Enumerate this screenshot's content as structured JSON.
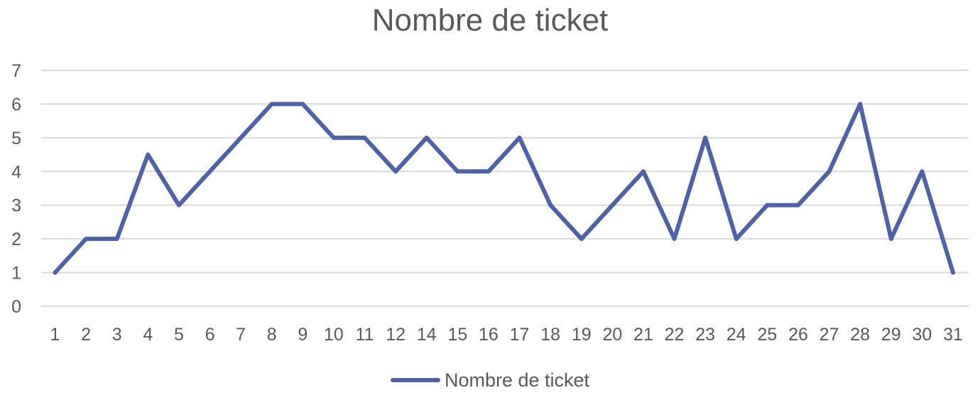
{
  "chart_data": {
    "type": "line",
    "title": "Nombre de ticket",
    "categories": [
      "1",
      "2",
      "3",
      "4",
      "5",
      "6",
      "7",
      "8",
      "9",
      "10",
      "11",
      "12",
      "14",
      "15",
      "16",
      "17",
      "18",
      "19",
      "20",
      "21",
      "22",
      "23",
      "24",
      "25",
      "26",
      "27",
      "28",
      "29",
      "30",
      "31"
    ],
    "series": [
      {
        "name": "Nombre de ticket",
        "color": "#4F62A8",
        "values": [
          1,
          2,
          2,
          4.5,
          3,
          4,
          5,
          6,
          6,
          5,
          5,
          4,
          5,
          4,
          4,
          5,
          3,
          2,
          3,
          4,
          2,
          5,
          2,
          3,
          3,
          4,
          6,
          2,
          4,
          1
        ]
      }
    ],
    "ylim": [
      0,
      7
    ],
    "yticks": [
      0,
      1,
      2,
      3,
      4,
      5,
      6,
      7
    ],
    "grid": true,
    "legend_position": "bottom"
  }
}
